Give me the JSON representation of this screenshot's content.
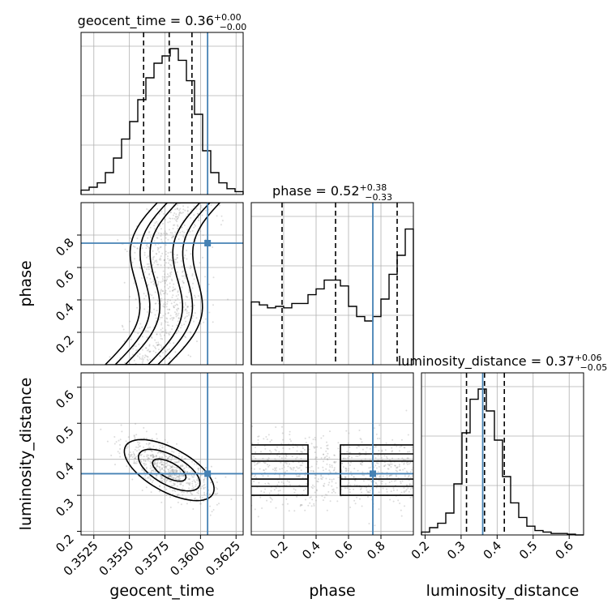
{
  "chart_data": {
    "type": "corner",
    "parameters": [
      "geocent_time",
      "phase",
      "luminosity_distance"
    ],
    "ranges": {
      "geocent_time": [
        0.3516,
        0.363
      ],
      "phase": [
        0.0,
        1.0
      ],
      "luminosity_distance": [
        0.19,
        0.64
      ]
    },
    "ticks": {
      "geocent_time": [
        "0.3525",
        "0.3550",
        "0.3575",
        "0.3600",
        "0.3625"
      ],
      "phase": [
        "0.2",
        "0.4",
        "0.6",
        "0.8"
      ],
      "luminosity_distance_x": [
        "0.2",
        "0.3",
        "0.4",
        "0.5",
        "0.6"
      ],
      "luminosity_distance_y": [
        "0.2",
        "0.3",
        "0.4",
        "0.5",
        "0.6"
      ]
    },
    "titles": {
      "geocent_time": {
        "name": "geocent_time",
        "median": "0.36",
        "plus": "+0.00",
        "minus": "−0.00"
      },
      "phase": {
        "name": "phase",
        "median": "0.52",
        "plus": "+0.38",
        "minus": "−0.33"
      },
      "luminosity_distance": {
        "name": "luminosity_distance",
        "median": "0.37",
        "plus": "+0.06",
        "minus": "−0.05"
      }
    },
    "axis_labels": {
      "geocent_time": "geocent_time",
      "phase": "phase",
      "luminosity_distance": "luminosity_distance"
    },
    "truth": {
      "geocent_time": 0.3605,
      "phase": 0.75,
      "luminosity_distance": 0.36
    },
    "quantiles": {
      "geocent_time": [
        0.356,
        0.3578,
        0.3594
      ],
      "phase": [
        0.19,
        0.52,
        0.9
      ],
      "luminosity_distance": [
        0.315,
        0.365,
        0.42
      ]
    },
    "hist_geocent_time": [
      0.03,
      0.05,
      0.08,
      0.15,
      0.25,
      0.38,
      0.5,
      0.65,
      0.8,
      0.9,
      0.95,
      1.0,
      0.92,
      0.78,
      0.55,
      0.3,
      0.15,
      0.08,
      0.04,
      0.02
    ],
    "hist_phase": [
      0.43,
      0.41,
      0.39,
      0.4,
      0.39,
      0.42,
      0.42,
      0.48,
      0.52,
      0.58,
      0.58,
      0.54,
      0.4,
      0.33,
      0.3,
      0.33,
      0.45,
      0.62,
      0.75,
      0.93
    ],
    "hist_luminosity_distance": [
      0.02,
      0.05,
      0.08,
      0.15,
      0.35,
      0.7,
      0.93,
      1.0,
      0.85,
      0.65,
      0.4,
      0.22,
      0.12,
      0.06,
      0.03,
      0.02,
      0.01,
      0.01,
      0.005,
      0.0
    ],
    "colors": {
      "truth": "#4682b4",
      "hist": "#000000",
      "grid": "#b0b0b0",
      "points": "#9a9a9a"
    }
  }
}
